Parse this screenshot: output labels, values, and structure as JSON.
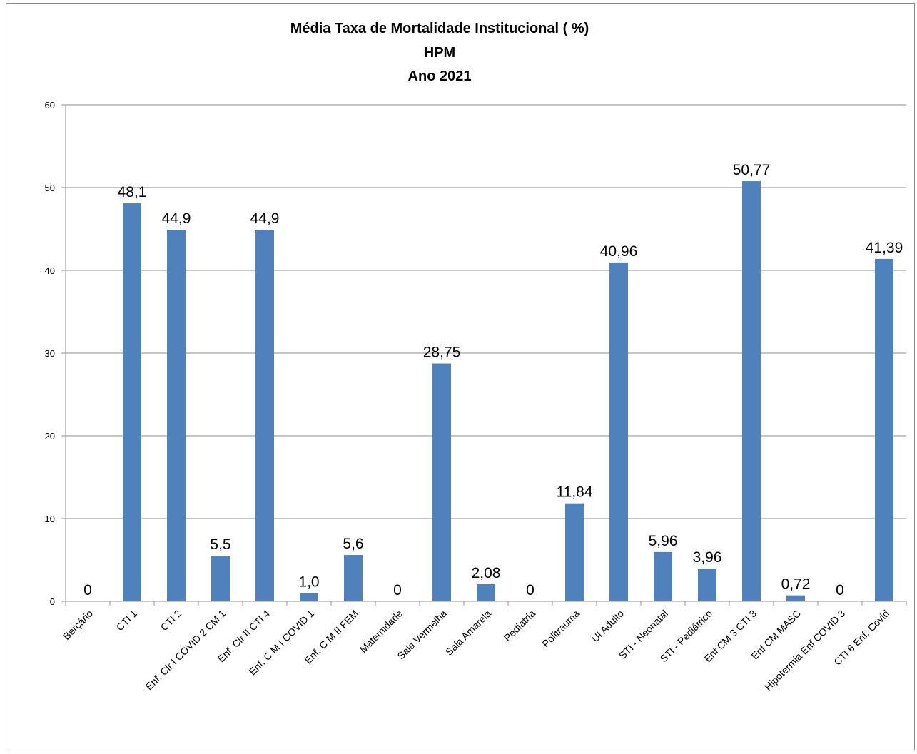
{
  "chart_data": {
    "type": "bar",
    "title": [
      "Média  Taxa de Mortalidade  Institucional  ( %)",
      "HPM",
      "Ano 2021"
    ],
    "categories": [
      "Berçário",
      "CTI 1",
      "CTI 2",
      "Enf. Cir I COVID 2 CM 1",
      "Enf. Cir II CTI 4",
      "Enf. C M I COVID 1",
      "Enf. C M II FEM",
      "Maternidade",
      "Sala Vermelha",
      "Sala Amarela",
      "Pediatria",
      "Politrauma",
      "UI Adulto",
      "STI - Neonatal",
      "STI - Pediátrico",
      "Enf CM 3 CTI 3",
      "Enf CM MASC",
      "Hipotermia Enf COVID 3",
      "CTI 6 Enf. Covid"
    ],
    "values": [
      0,
      48.1,
      44.9,
      5.5,
      44.9,
      1.0,
      5.6,
      0,
      28.75,
      2.08,
      0,
      11.84,
      40.96,
      5.96,
      3.96,
      50.77,
      0.72,
      0,
      41.39
    ],
    "data_labels": [
      "0",
      "48,1",
      "44,9",
      "5,5",
      "44,9",
      "1,0",
      "5,6",
      "0",
      "28,75",
      "2,08",
      "0",
      "11,84",
      "40,96",
      "5,96",
      "3,96",
      "50,77",
      "0,72",
      "0",
      "41,39"
    ],
    "yticks": [
      "0",
      "10",
      "20",
      "30",
      "40",
      "50",
      "60"
    ],
    "ylim": [
      0,
      60
    ],
    "xlabel": "",
    "ylabel": "",
    "grid": true,
    "legend": "none",
    "colors": {
      "bar": "#4f81bd",
      "grid": "#8c8c8c",
      "axis": "#8c8c8c"
    }
  }
}
